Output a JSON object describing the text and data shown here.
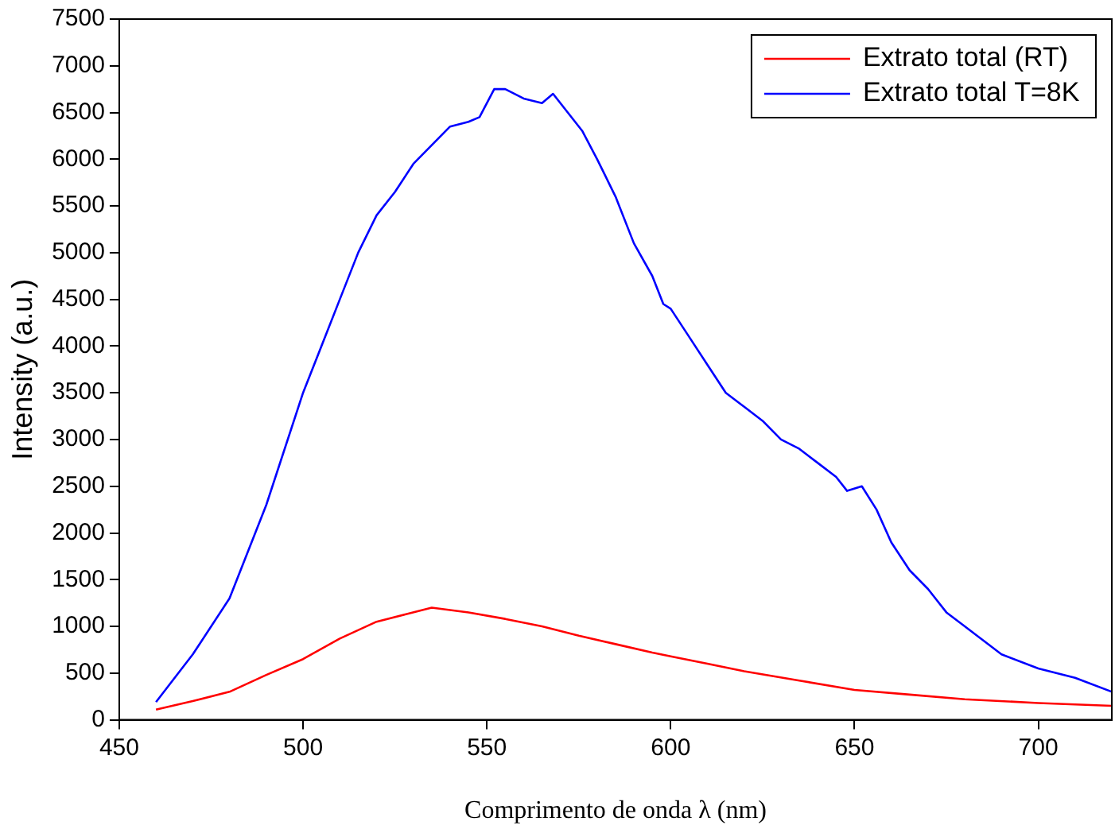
{
  "chart_data": {
    "type": "line",
    "xlabel": "Comprimento de onda λ (nm)",
    "ylabel": "Intensity (a.u.)",
    "xlim": [
      450,
      720
    ],
    "xticks": [
      450,
      500,
      550,
      600,
      650,
      700
    ],
    "ylim": [
      0,
      7500
    ],
    "yticks": [
      0,
      500,
      1000,
      1500,
      2000,
      2500,
      3000,
      3500,
      4000,
      4500,
      5000,
      5500,
      6000,
      6500,
      7000,
      7500
    ],
    "grid": false,
    "legend": "top right",
    "marker": "none",
    "line_style": "solid",
    "series": [
      {
        "name": "Extrato total (RT)",
        "color": "#ff0000",
        "x": [
          460,
          470,
          480,
          490,
          500,
          510,
          520,
          528,
          535,
          545,
          555,
          565,
          575,
          585,
          595,
          600,
          610,
          620,
          635,
          650,
          665,
          680,
          700,
          720
        ],
        "values": [
          110,
          200,
          300,
          480,
          650,
          870,
          1050,
          1130,
          1200,
          1150,
          1080,
          1000,
          900,
          810,
          720,
          680,
          600,
          520,
          420,
          320,
          270,
          220,
          180,
          150
        ]
      },
      {
        "name": "Extrato total T=8K",
        "color": "#0000ff",
        "x": [
          460,
          470,
          480,
          490,
          500,
          505,
          510,
          515,
          520,
          525,
          530,
          535,
          540,
          545,
          548,
          552,
          555,
          560,
          565,
          568,
          572,
          576,
          580,
          585,
          590,
          595,
          598,
          600,
          605,
          610,
          615,
          620,
          625,
          630,
          635,
          640,
          645,
          648,
          652,
          656,
          660,
          665,
          670,
          675,
          680,
          690,
          700,
          710,
          720
        ],
        "values": [
          190,
          700,
          1300,
          2300,
          3500,
          4000,
          4500,
          5000,
          5400,
          5650,
          5950,
          6150,
          6350,
          6400,
          6450,
          6750,
          6750,
          6650,
          6600,
          6700,
          6500,
          6300,
          6000,
          5600,
          5100,
          4750,
          4450,
          4400,
          4100,
          3800,
          3500,
          3350,
          3200,
          3000,
          2900,
          2750,
          2600,
          2450,
          2500,
          2250,
          1900,
          1600,
          1400,
          1150,
          1000,
          700,
          550,
          450,
          300
        ]
      }
    ]
  }
}
